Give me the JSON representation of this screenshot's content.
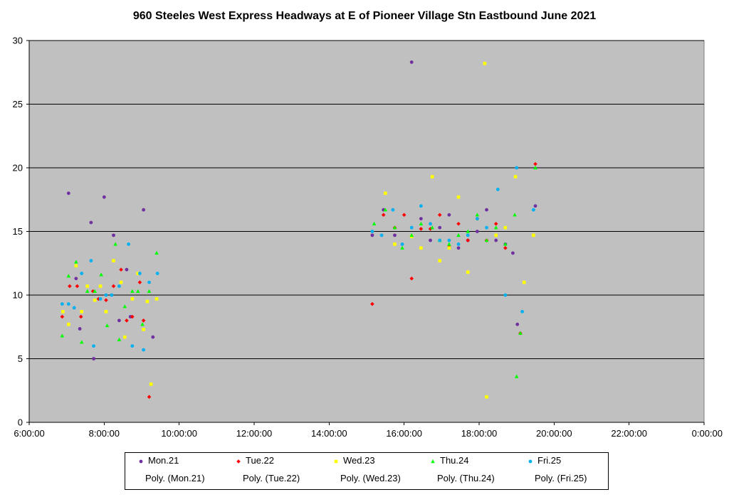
{
  "chart_data": {
    "type": "scatter",
    "title": "960 Steeles West Express Headways at E of Pioneer Village Stn Eastbound June 2021",
    "xlabel": "",
    "ylabel": "",
    "x_unit": "hours",
    "xlim": [
      6,
      24
    ],
    "ylim": [
      0,
      30
    ],
    "x_ticks": [
      6,
      8,
      10,
      12,
      14,
      16,
      18,
      20,
      22,
      24
    ],
    "x_tick_labels": [
      "6:00:00",
      "8:00:00",
      "10:00:00",
      "12:00:00",
      "14:00:00",
      "16:00:00",
      "18:00:00",
      "20:00:00",
      "22:00:00",
      "0:00:00"
    ],
    "y_ticks": [
      0,
      5,
      10,
      15,
      20,
      25,
      30
    ],
    "y_tick_labels": [
      "0",
      "5",
      "10",
      "15",
      "20",
      "25",
      "30"
    ],
    "grid": "horizontal",
    "plot_background": "#c0c0c0",
    "legend_position": "bottom",
    "trendline_labels": [
      "Poly. (Mon.21)",
      "Poly. (Tue.22)",
      "Poly. (Wed.23)",
      "Poly. (Thu.24)",
      "Poly. (Fri.25)"
    ],
    "series": [
      {
        "name": "Mon.21",
        "color": "#7030a0",
        "marker": "circle",
        "points": [
          [
            7.05,
            18.0
          ],
          [
            7.25,
            11.3
          ],
          [
            7.35,
            7.35
          ],
          [
            7.65,
            15.7
          ],
          [
            7.72,
            5.0
          ],
          [
            8.0,
            17.7
          ],
          [
            8.25,
            14.7
          ],
          [
            8.4,
            8.0
          ],
          [
            8.6,
            12.0
          ],
          [
            8.7,
            8.3
          ],
          [
            9.05,
            16.7
          ],
          [
            9.3,
            6.7
          ],
          [
            15.15,
            14.7
          ],
          [
            15.45,
            16.7
          ],
          [
            15.75,
            14.7
          ],
          [
            16.2,
            28.3
          ],
          [
            16.45,
            16.0
          ],
          [
            16.7,
            14.3
          ],
          [
            16.95,
            15.3
          ],
          [
            17.2,
            16.3
          ],
          [
            17.45,
            13.7
          ],
          [
            17.7,
            14.3
          ],
          [
            17.95,
            15.0
          ],
          [
            18.2,
            16.7
          ],
          [
            18.45,
            14.3
          ],
          [
            18.7,
            14.0
          ],
          [
            18.9,
            13.3
          ],
          [
            19.02,
            7.7
          ],
          [
            19.5,
            17.0
          ]
        ]
      },
      {
        "name": "Tue.22",
        "color": "#ff0000",
        "marker": "diamond",
        "points": [
          [
            6.88,
            8.3
          ],
          [
            7.08,
            10.7
          ],
          [
            7.28,
            10.7
          ],
          [
            7.38,
            8.3
          ],
          [
            7.7,
            10.3
          ],
          [
            7.85,
            9.7
          ],
          [
            8.05,
            9.6
          ],
          [
            8.25,
            10.7
          ],
          [
            8.45,
            12.0
          ],
          [
            8.6,
            8.0
          ],
          [
            8.75,
            8.3
          ],
          [
            8.95,
            11.0
          ],
          [
            9.05,
            8.0
          ],
          [
            9.2,
            2.0
          ],
          [
            15.15,
            9.3
          ],
          [
            15.45,
            16.3
          ],
          [
            15.75,
            15.3
          ],
          [
            16.0,
            16.3
          ],
          [
            16.2,
            11.3
          ],
          [
            16.45,
            15.2
          ],
          [
            16.7,
            15.2
          ],
          [
            16.95,
            16.3
          ],
          [
            17.2,
            13.8
          ],
          [
            17.45,
            15.6
          ],
          [
            17.7,
            14.3
          ],
          [
            17.95,
            16.0
          ],
          [
            18.2,
            14.3
          ],
          [
            18.45,
            15.6
          ],
          [
            18.7,
            13.7
          ],
          [
            19.1,
            7.0
          ],
          [
            19.5,
            20.3
          ]
        ]
      },
      {
        "name": "Wed.23",
        "color": "#ffff00",
        "marker": "square",
        "points": [
          [
            6.9,
            8.7
          ],
          [
            7.05,
            7.7
          ],
          [
            7.25,
            12.3
          ],
          [
            7.4,
            8.7
          ],
          [
            7.55,
            10.7
          ],
          [
            7.75,
            9.6
          ],
          [
            7.9,
            10.7
          ],
          [
            8.05,
            8.7
          ],
          [
            8.25,
            12.7
          ],
          [
            8.45,
            11.0
          ],
          [
            8.55,
            6.7
          ],
          [
            8.75,
            9.7
          ],
          [
            8.9,
            11.7
          ],
          [
            9.05,
            7.3
          ],
          [
            9.15,
            9.5
          ],
          [
            9.25,
            3.0
          ],
          [
            9.4,
            9.7
          ],
          [
            15.5,
            18.0
          ],
          [
            15.75,
            14.0
          ],
          [
            16.2,
            14.6
          ],
          [
            16.45,
            13.7
          ],
          [
            16.75,
            19.3
          ],
          [
            16.95,
            12.7
          ],
          [
            17.2,
            13.7
          ],
          [
            17.45,
            17.7
          ],
          [
            17.7,
            11.8
          ],
          [
            18.15,
            28.2
          ],
          [
            18.2,
            2.0
          ],
          [
            18.45,
            14.7
          ],
          [
            18.7,
            15.3
          ],
          [
            18.97,
            19.3
          ],
          [
            19.2,
            11.0
          ],
          [
            19.45,
            14.7
          ]
        ]
      },
      {
        "name": "Thu.24",
        "color": "#00ff00",
        "marker": "triangle",
        "points": [
          [
            6.88,
            6.8
          ],
          [
            7.05,
            11.5
          ],
          [
            7.25,
            12.6
          ],
          [
            7.4,
            6.3
          ],
          [
            7.55,
            10.3
          ],
          [
            7.75,
            10.3
          ],
          [
            7.92,
            11.6
          ],
          [
            8.08,
            7.6
          ],
          [
            8.3,
            14.0
          ],
          [
            8.4,
            6.5
          ],
          [
            8.55,
            9.1
          ],
          [
            8.75,
            10.3
          ],
          [
            8.9,
            10.3
          ],
          [
            9.02,
            7.7
          ],
          [
            9.2,
            10.3
          ],
          [
            9.4,
            13.3
          ],
          [
            15.2,
            15.6
          ],
          [
            15.5,
            16.7
          ],
          [
            15.75,
            15.3
          ],
          [
            15.95,
            13.7
          ],
          [
            16.2,
            14.7
          ],
          [
            16.45,
            15.6
          ],
          [
            16.75,
            15.3
          ],
          [
            16.95,
            14.3
          ],
          [
            17.2,
            14.0
          ],
          [
            17.45,
            14.7
          ],
          [
            17.7,
            15.0
          ],
          [
            17.95,
            16.3
          ],
          [
            18.2,
            14.3
          ],
          [
            18.45,
            15.3
          ],
          [
            18.7,
            14.0
          ],
          [
            18.95,
            16.3
          ],
          [
            19.0,
            3.6
          ],
          [
            19.1,
            7.0
          ],
          [
            19.5,
            20.0
          ]
        ]
      },
      {
        "name": "Fri.25",
        "color": "#00b0f0",
        "marker": "circle",
        "points": [
          [
            6.88,
            9.3
          ],
          [
            7.05,
            9.3
          ],
          [
            7.2,
            9.0
          ],
          [
            7.4,
            11.7
          ],
          [
            7.65,
            12.7
          ],
          [
            7.72,
            6.0
          ],
          [
            7.9,
            9.7
          ],
          [
            8.05,
            10.0
          ],
          [
            8.2,
            10.0
          ],
          [
            8.4,
            10.7
          ],
          [
            8.65,
            14.0
          ],
          [
            8.75,
            6.0
          ],
          [
            8.95,
            11.7
          ],
          [
            9.05,
            5.7
          ],
          [
            9.2,
            11.0
          ],
          [
            9.42,
            11.7
          ],
          [
            15.15,
            15.0
          ],
          [
            15.4,
            14.7
          ],
          [
            15.7,
            16.7
          ],
          [
            15.95,
            14.0
          ],
          [
            16.2,
            15.3
          ],
          [
            16.45,
            17.0
          ],
          [
            16.7,
            15.6
          ],
          [
            16.95,
            14.3
          ],
          [
            17.2,
            14.3
          ],
          [
            17.45,
            14.0
          ],
          [
            17.7,
            14.7
          ],
          [
            17.95,
            16.0
          ],
          [
            18.2,
            15.3
          ],
          [
            18.5,
            18.3
          ],
          [
            18.7,
            10.0
          ],
          [
            19.0,
            20.0
          ],
          [
            19.15,
            8.7
          ],
          [
            19.45,
            16.7
          ]
        ]
      }
    ]
  }
}
